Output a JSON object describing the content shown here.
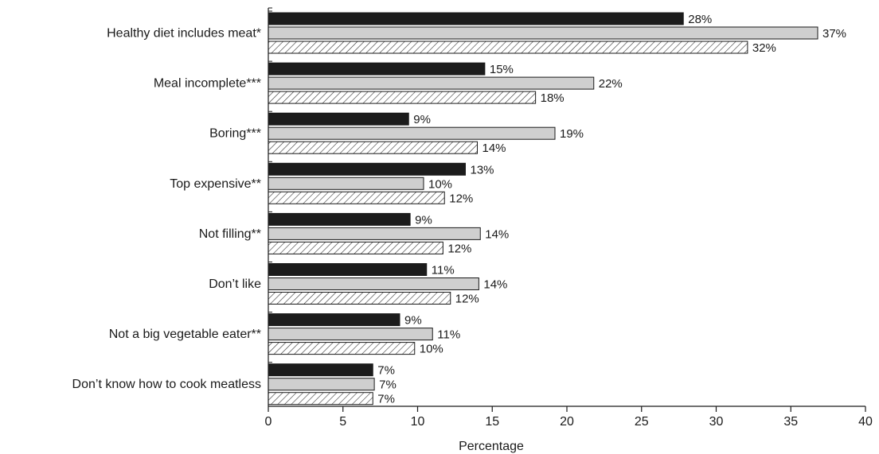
{
  "chart_data": {
    "type": "bar",
    "orientation": "horizontal",
    "xlabel": "Percentage",
    "xlim": [
      0,
      40
    ],
    "xticks": [
      0,
      5,
      10,
      15,
      20,
      25,
      30,
      35,
      40
    ],
    "grid": false,
    "value_suffix": "%",
    "categories": [
      "Healthy diet includes meat*",
      "Meal incomplete***",
      "Boring***",
      "Top expensive**",
      "Not filling**",
      "Don’t like",
      "Not a big vegetable eater**",
      "Don’t know how to cook meatless"
    ],
    "series": [
      {
        "fill": "#1c1c1c",
        "pattern": "solid",
        "values": [
          27.8,
          14.5,
          9.4,
          13.2,
          9.5,
          10.6,
          8.8,
          7.0
        ]
      },
      {
        "fill": "#cfcfcf",
        "pattern": "solid",
        "values": [
          36.8,
          21.8,
          19.2,
          10.4,
          14.2,
          14.1,
          11.0,
          7.1
        ]
      },
      {
        "fill": "#ffffff",
        "pattern": "diagonal-hatch",
        "values": [
          32.1,
          17.9,
          14.0,
          11.8,
          11.7,
          12.2,
          9.8,
          7.0
        ]
      }
    ],
    "data_labels": [
      [
        "28",
        "15",
        "9",
        "13",
        "9",
        "11",
        "9",
        "7"
      ],
      [
        "37",
        "22",
        "19",
        "10",
        "14",
        "14",
        "11",
        "7"
      ],
      [
        "32",
        "18",
        "14",
        "12",
        "12",
        "12",
        "10",
        "7"
      ]
    ]
  }
}
